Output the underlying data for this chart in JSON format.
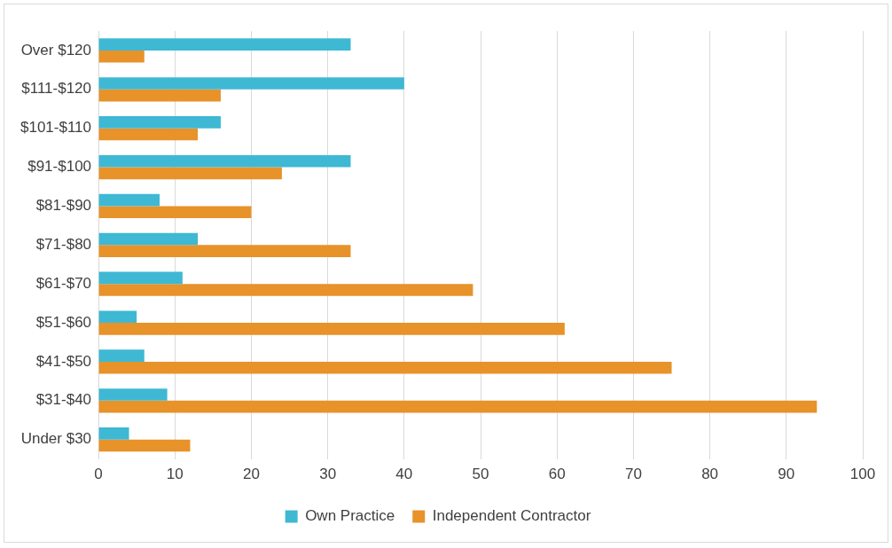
{
  "chart_data": {
    "type": "bar",
    "orientation": "horizontal",
    "categories": [
      "Over $120",
      "$111-$120",
      "$101-$110",
      "$91-$100",
      "$81-$90",
      "$71-$80",
      "$61-$70",
      "$51-$60",
      "$41-$50",
      "$31-$40",
      "Under $30"
    ],
    "series": [
      {
        "name": "Own Practice",
        "color": "#3fb8d4",
        "values": [
          33,
          40,
          16,
          33,
          8,
          13,
          11,
          5,
          6,
          9,
          4
        ]
      },
      {
        "name": "Independent Contractor",
        "color": "#e8922a",
        "values": [
          6,
          16,
          13,
          24,
          20,
          33,
          49,
          61,
          75,
          94,
          12
        ]
      }
    ],
    "xlim": [
      0,
      100
    ],
    "xticks": [
      0,
      10,
      20,
      30,
      40,
      50,
      60,
      70,
      80,
      90,
      100
    ],
    "grid": "x",
    "legend": "bottom"
  }
}
